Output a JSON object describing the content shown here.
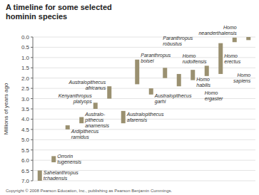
{
  "chart_data": {
    "type": "bar",
    "title": "A timeline for some selected\nhominin species",
    "ylabel": "Millions of years ago",
    "annotations": [
      "Copyright © 2008 Pearson Education, Inc., publishing as Pearson Benjamin Cummings."
    ],
    "categories": [
      "Sahelanthropus\ntchadensis",
      "Orrorin\ntugenensis",
      "Ardipithecus\nramidus",
      "Australo-\npithecus\nanamensis",
      "Kenyanthropus\nplatyops",
      "Australopithecus\nafricanus",
      "Australopithecus\nafarensis",
      "Paranthropus\nboisei",
      "Australopithecus\ngarhi",
      "Paranthropus\nrobustus",
      "Homo\nrudolfensis",
      "Homo\nhabilis",
      "Homo\nergaster",
      "Homo\nerectus",
      "Homo\nneanderthalensis",
      "Homo\nsapiens"
    ],
    "starts": [
      7.0,
      6.1,
      4.5,
      4.2,
      3.5,
      3.0,
      4.2,
      2.3,
      2.8,
      2.0,
      2.4,
      2.1,
      1.9,
      1.8,
      0.25,
      0.15
    ],
    "ends": [
      6.5,
      5.8,
      4.3,
      3.9,
      3.2,
      2.4,
      3.6,
      1.1,
      2.5,
      1.5,
      1.8,
      1.6,
      1.4,
      0.3,
      0.03,
      0.0
    ],
    "color": "#9a9070",
    "ylim": [
      0.0,
      7.0
    ],
    "yticks": [
      {
        "value": 0.0,
        "label": "0.0"
      },
      0.5,
      {
        "value": 1.0,
        "label": "1.0"
      },
      1.5,
      {
        "value": 2.0,
        "label": "2.0"
      },
      2.5,
      {
        "value": 3.0,
        "label": "3.0"
      },
      3.5,
      {
        "value": 4.0,
        "label": "4.0"
      },
      4.5,
      {
        "value": 5.0,
        "label": "5.0"
      },
      5.5,
      {
        "value": 6.0,
        "label": "6.0"
      },
      6.5,
      {
        "value": 7.0,
        "label": "7.0"
      }
    ],
    "grid": true
  }
}
